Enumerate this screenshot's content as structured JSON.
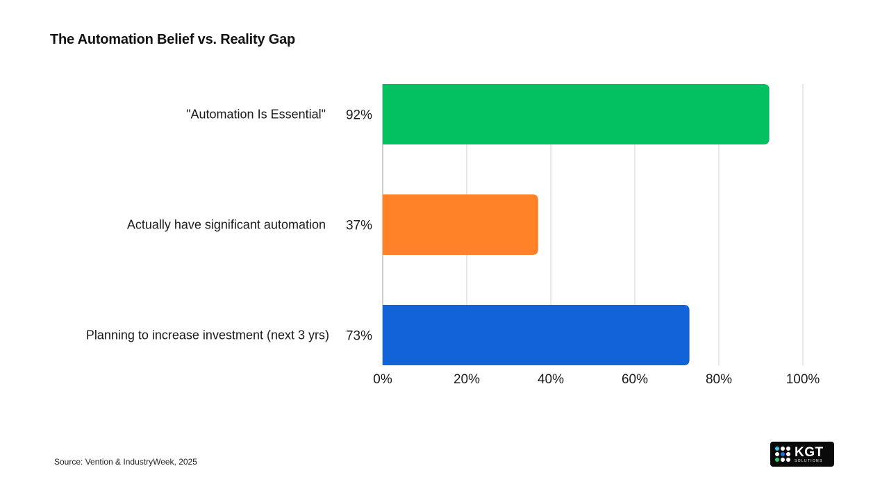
{
  "chart_data": {
    "type": "bar",
    "orientation": "horizontal",
    "title": "The Automation Belief vs. Reality Gap",
    "categories": [
      "\"Automation Is Essential\"",
      "Actually have significant automation",
      "Planning to increase investment (next 3 yrs)"
    ],
    "values": [
      92,
      37,
      73
    ],
    "value_labels": [
      "92%",
      "37%",
      "73%"
    ],
    "colors": [
      "#03C061",
      "#FF8228",
      "#1263D8"
    ],
    "xlim": [
      0,
      100
    ],
    "x_ticks": [
      0,
      20,
      40,
      60,
      80,
      100
    ],
    "x_tick_labels": [
      "0%",
      "20%",
      "40%",
      "60%",
      "80%",
      "100%"
    ],
    "grid": "vertical",
    "xlabel": "",
    "ylabel": ""
  },
  "source": "Source: Vention & IndustryWeek, 2025",
  "logo": {
    "main": "KGT",
    "sub": "SOLUTIONS",
    "icon": "dot-grid-logo-icon"
  }
}
